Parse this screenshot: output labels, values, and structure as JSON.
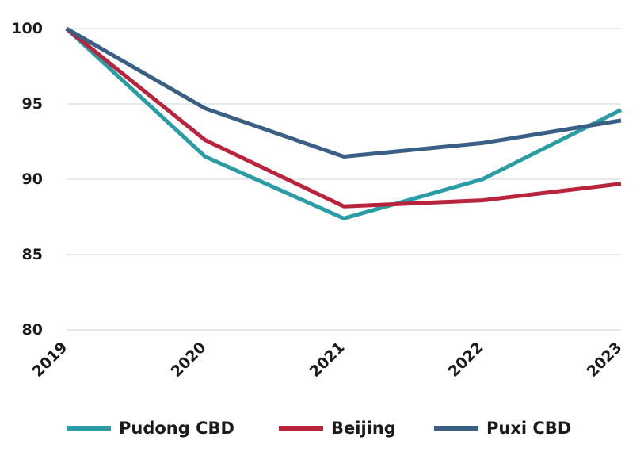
{
  "chart_data": {
    "type": "line",
    "title": "",
    "xlabel": "",
    "ylabel": "",
    "x": [
      "2019",
      "2020",
      "2021",
      "2022",
      "2023"
    ],
    "ylim": [
      80,
      100
    ],
    "yticks": [
      "80",
      "85",
      "90",
      "95",
      "100"
    ],
    "grid": true,
    "legend_position": "bottom",
    "series": [
      {
        "name": "Pudong CBD",
        "color": "#2a9ca5",
        "values": [
          100,
          91.5,
          87.4,
          90.0,
          94.6
        ]
      },
      {
        "name": "Beijing",
        "color": "#b8243c",
        "values": [
          100,
          92.6,
          88.2,
          88.6,
          89.7
        ]
      },
      {
        "name": "Puxi CBD",
        "color": "#3a5f85",
        "values": [
          100,
          94.7,
          91.5,
          92.4,
          93.9
        ]
      }
    ]
  }
}
